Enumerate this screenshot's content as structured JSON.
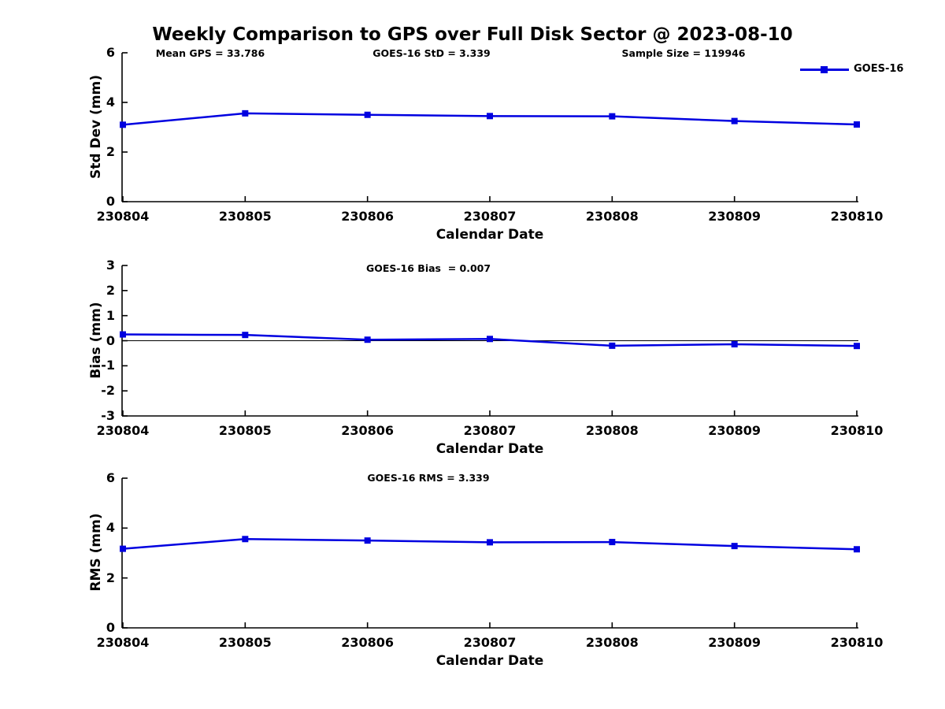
{
  "title": "Weekly Comparison to GPS over Full Disk Sector @ 2023-08-10",
  "legend": {
    "label": "GOES-16",
    "position": "top-right"
  },
  "chart_data": {
    "type": "line",
    "series_name": "GOES-16",
    "line_color": "#0000e0",
    "axis_color": "#000000",
    "marker": "filled-square",
    "grid": false,
    "categories": [
      "230804",
      "230805",
      "230806",
      "230807",
      "230808",
      "230809",
      "230810"
    ],
    "subplots": [
      {
        "name": "std-dev",
        "ylabel": "Std Dev (mm)",
        "xlabel": "Calendar Date",
        "ylim": [
          0,
          6
        ],
        "yticks": [
          "0",
          "2",
          "4",
          "6"
        ],
        "values": [
          3.1,
          3.56,
          3.5,
          3.45,
          3.44,
          3.25,
          3.11
        ],
        "annotations": [
          "Mean GPS = 33.786",
          "GOES-16 StD = 3.339",
          "Sample Size = 119946"
        ]
      },
      {
        "name": "bias",
        "ylabel": "Bias (mm)",
        "xlabel": "Calendar Date",
        "ylim": [
          -3,
          3
        ],
        "yticks": [
          "3",
          "2",
          "1",
          "0",
          "-1",
          "-2",
          "-3"
        ],
        "values": [
          0.25,
          0.23,
          0.04,
          0.07,
          -0.2,
          -0.14,
          -0.21
        ],
        "zero_line": true,
        "annotations": [
          "GOES-16 Bias  = 0.007"
        ]
      },
      {
        "name": "rms",
        "ylabel": "RMS (mm)",
        "xlabel": "Calendar Date",
        "ylim": [
          0,
          6
        ],
        "yticks": [
          "0",
          "2",
          "4",
          "6"
        ],
        "values": [
          3.17,
          3.56,
          3.5,
          3.43,
          3.44,
          3.28,
          3.15
        ],
        "annotations": [
          "GOES-16 RMS = 3.339"
        ]
      }
    ]
  }
}
